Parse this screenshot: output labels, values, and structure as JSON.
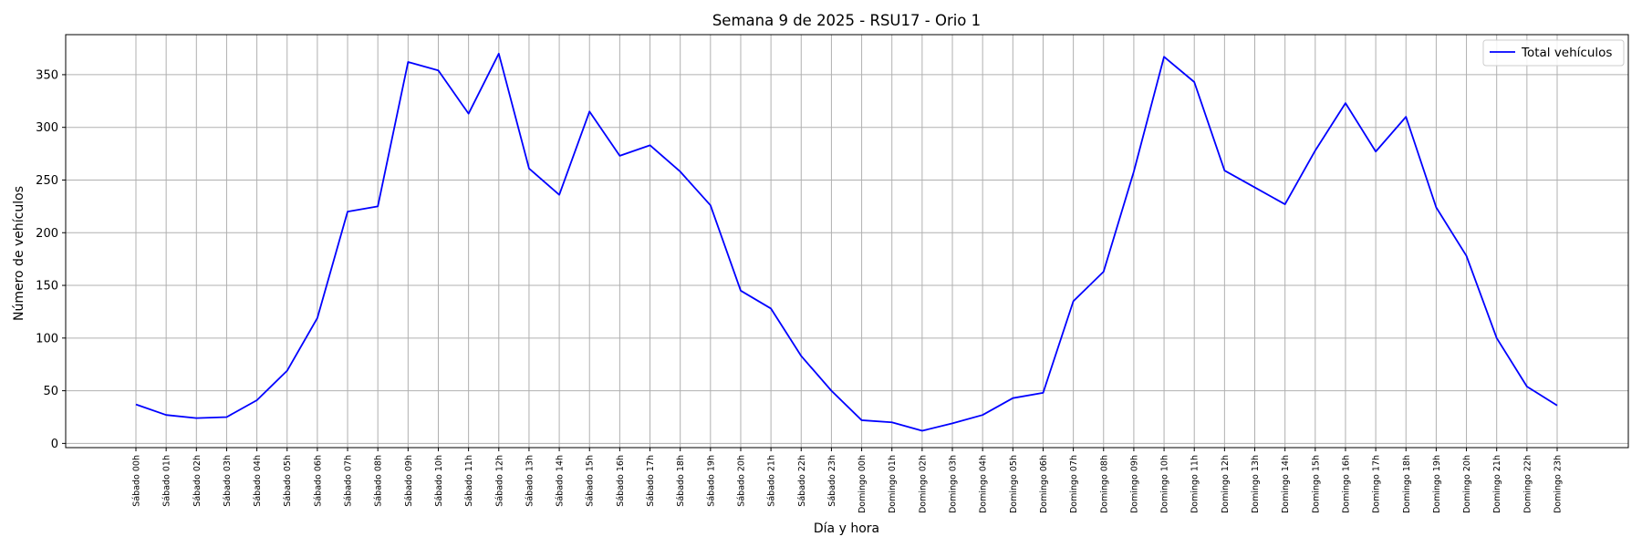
{
  "chart_data": {
    "type": "line",
    "title": "Semana 9 de 2025 - RSU17 - Orio 1",
    "xlabel": "Día y hora",
    "ylabel": "Número de vehículos",
    "ylim": [
      -4,
      388
    ],
    "yticks": [
      0,
      50,
      100,
      150,
      200,
      250,
      300,
      350
    ],
    "grid": true,
    "legend_position": "top-right",
    "categories": [
      "Sábado 00h",
      "Sábado 01h",
      "Sábado 02h",
      "Sábado 03h",
      "Sábado 04h",
      "Sábado 05h",
      "Sábado 06h",
      "Sábado 07h",
      "Sábado 08h",
      "Sábado 09h",
      "Sábado 10h",
      "Sábado 11h",
      "Sábado 12h",
      "Sábado 13h",
      "Sábado 14h",
      "Sábado 15h",
      "Sábado 16h",
      "Sábado 17h",
      "Sábado 18h",
      "Sábado 19h",
      "Sábado 20h",
      "Sábado 21h",
      "Sábado 22h",
      "Sábado 23h",
      "Domingo 00h",
      "Domingo 01h",
      "Domingo 02h",
      "Domingo 03h",
      "Domingo 04h",
      "Domingo 05h",
      "Domingo 06h",
      "Domingo 07h",
      "Domingo 08h",
      "Domingo 09h",
      "Domingo 10h",
      "Domingo 11h",
      "Domingo 12h",
      "Domingo 13h",
      "Domingo 14h",
      "Domingo 15h",
      "Domingo 16h",
      "Domingo 17h",
      "Domingo 18h",
      "Domingo 19h",
      "Domingo 20h",
      "Domingo 21h",
      "Domingo 22h",
      "Domingo 23h"
    ],
    "series": [
      {
        "name": "Total vehículos",
        "color": "#0000ff",
        "values": [
          37,
          27,
          24,
          25,
          41,
          69,
          119,
          220,
          225,
          362,
          354,
          313,
          370,
          261,
          236,
          315,
          273,
          283,
          258,
          226,
          145,
          128,
          83,
          50,
          22,
          20,
          12,
          19,
          27,
          43,
          48,
          135,
          163,
          258,
          367,
          343,
          259,
          243,
          227,
          278,
          323,
          277,
          310,
          224,
          178,
          100,
          54,
          36
        ]
      }
    ]
  }
}
